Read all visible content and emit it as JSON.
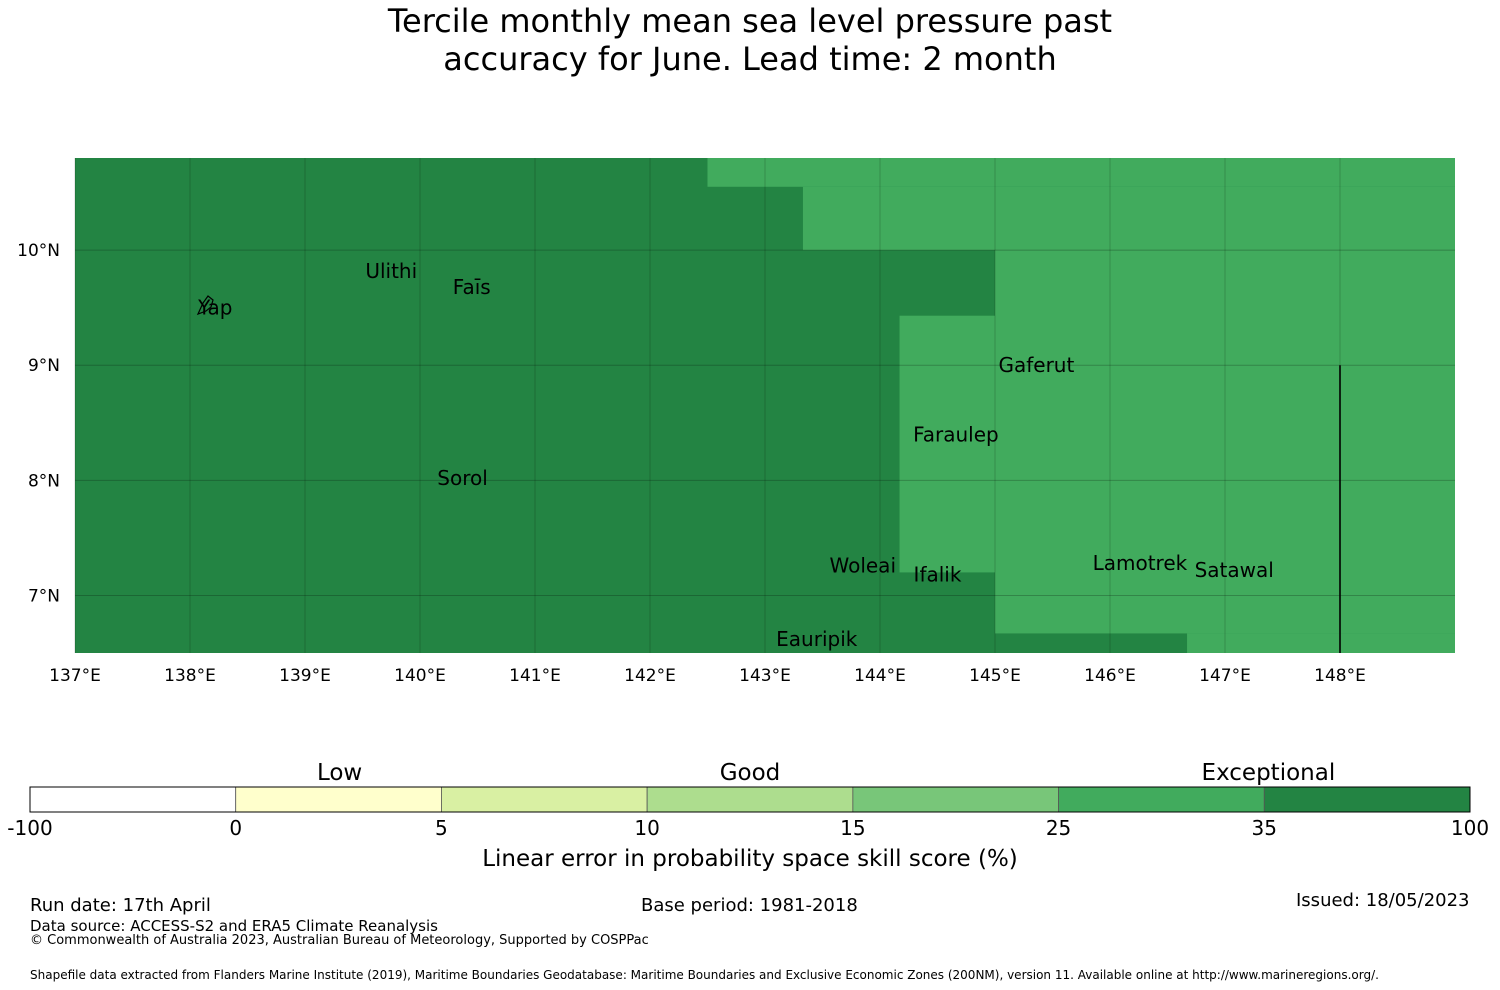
{
  "title": {
    "line1": "Tercile monthly mean sea level pressure past",
    "line2": "accuracy for June. Lead time: 2 month"
  },
  "map": {
    "lon_range": [
      137,
      149
    ],
    "lat_range": [
      6.5,
      10.8
    ],
    "lon_ticks": [
      {
        "value": 137,
        "label": "137°E"
      },
      {
        "value": 138,
        "label": "138°E"
      },
      {
        "value": 139,
        "label": "139°E"
      },
      {
        "value": 140,
        "label": "140°E"
      },
      {
        "value": 141,
        "label": "141°E"
      },
      {
        "value": 142,
        "label": "142°E"
      },
      {
        "value": 143,
        "label": "143°E"
      },
      {
        "value": 144,
        "label": "144°E"
      },
      {
        "value": 145,
        "label": "145°E"
      },
      {
        "value": 146,
        "label": "146°E"
      },
      {
        "value": 147,
        "label": "147°E"
      },
      {
        "value": 148,
        "label": "148°E"
      }
    ],
    "lat_ticks": [
      {
        "value": 7,
        "label": "7°N"
      },
      {
        "value": 8,
        "label": "8°N"
      },
      {
        "value": 9,
        "label": "9°N"
      },
      {
        "value": 10,
        "label": "10°N"
      }
    ],
    "colors": {
      "exceptional_high": "#238443",
      "exceptional_low": "#41ab5d"
    },
    "lighter_regions": [
      {
        "lon": [
          142.5,
          149
        ],
        "lat": [
          10.55,
          10.8
        ]
      },
      {
        "lon": [
          143.33,
          149
        ],
        "lat": [
          10.0,
          10.55
        ]
      },
      {
        "lon": [
          145.0,
          149
        ],
        "lat": [
          6.67,
          10.0
        ]
      },
      {
        "lon": [
          144.17,
          145.0
        ],
        "lat": [
          7.2,
          9.43
        ]
      },
      {
        "lon": [
          146.67,
          149
        ],
        "lat": [
          6.5,
          6.67
        ]
      }
    ],
    "boundary_line": {
      "lon": 148.0,
      "lat": [
        6.5,
        9.0
      ]
    },
    "places": [
      {
        "name": "Ulithi",
        "lon": 139.75,
        "lat": 9.82
      },
      {
        "name": "Faīs",
        "lon": 140.45,
        "lat": 9.68
      },
      {
        "name": "Yap",
        "lon": 138.22,
        "lat": 9.5
      },
      {
        "name": "Gaferut",
        "lon": 145.36,
        "lat": 9.0
      },
      {
        "name": "Faraulep",
        "lon": 144.66,
        "lat": 8.4
      },
      {
        "name": "Sorol",
        "lon": 140.37,
        "lat": 8.02
      },
      {
        "name": "Woleai",
        "lon": 143.85,
        "lat": 7.26
      },
      {
        "name": "Ifalik",
        "lon": 144.5,
        "lat": 7.18
      },
      {
        "name": "Lamotrek",
        "lon": 146.26,
        "lat": 7.28
      },
      {
        "name": "Satawal",
        "lon": 147.08,
        "lat": 7.22
      },
      {
        "name": "Eauripik",
        "lon": 143.45,
        "lat": 6.62
      }
    ]
  },
  "colorbar": {
    "categories": [
      {
        "label": "Low",
        "position": 0.215
      },
      {
        "label": "Good",
        "position": 0.5
      },
      {
        "label": "Exceptional",
        "position": 0.86
      }
    ],
    "segments": [
      {
        "from": "-100",
        "to": "0",
        "color": "#ffffff"
      },
      {
        "from": "0",
        "to": "5",
        "color": "#ffffcc"
      },
      {
        "from": "5",
        "to": "10",
        "color": "#d9f0a3"
      },
      {
        "from": "10",
        "to": "15",
        "color": "#addd8e"
      },
      {
        "from": "15",
        "to": "25",
        "color": "#78c679"
      },
      {
        "from": "25",
        "to": "35",
        "color": "#41ab5d"
      },
      {
        "from": "35",
        "to": "100",
        "color": "#238443"
      }
    ],
    "ticks": [
      "-100",
      "0",
      "5",
      "10",
      "15",
      "25",
      "35",
      "100"
    ],
    "label": "Linear error in probability space skill score (%)"
  },
  "footer": {
    "run_date": "Run date: 17th April",
    "base_period": "Base period: 1981-2018",
    "issued": "Issued: 18/05/2023",
    "data_source": "Data source: ACCESS-S2 and ERA5 Climate Reanalysis",
    "copyright": "© Commonwealth of Australia 2023, Australian Bureau of Meteorology, Supported by COSPPac",
    "shapefile": "Shapefile data extracted from Flanders Marine Institute (2019), Maritime Boundaries Geodatabase: Maritime Boundaries and Exclusive Economic Zones (200NM), version 11. Available online at http://www.marineregions.org/."
  }
}
